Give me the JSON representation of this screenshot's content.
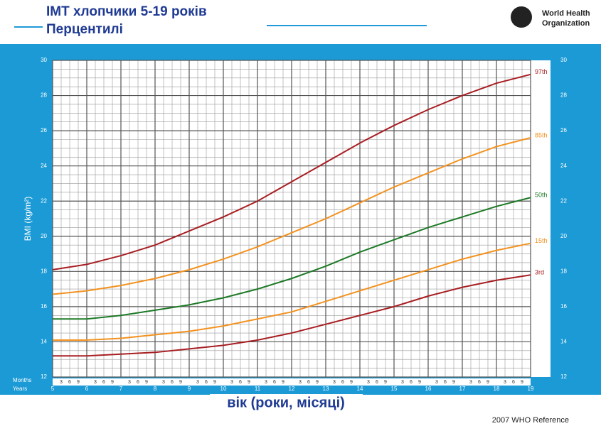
{
  "chart_data": {
    "type": "line",
    "title": "ІМТ хлопчики 5-19 років",
    "subtitle": "Перцентилі",
    "organization": [
      "World Health",
      "Organization"
    ],
    "ylabel": "BMI (kg/m²)",
    "xlabel": "вік (роки, місяці)",
    "months_label": "Months",
    "years_label": "Years",
    "month_ticks": [
      "3",
      "6",
      "9"
    ],
    "footer": "2007  WHO Reference",
    "x": [
      5,
      6,
      7,
      8,
      9,
      10,
      11,
      12,
      13,
      14,
      15,
      16,
      17,
      18,
      19
    ],
    "xlim": [
      5,
      19
    ],
    "xticks": [
      5,
      6,
      7,
      8,
      9,
      10,
      11,
      12,
      13,
      14,
      15,
      16,
      17,
      18,
      19
    ],
    "ylim": [
      12,
      30
    ],
    "yticks": [
      12,
      14,
      16,
      18,
      20,
      22,
      24,
      26,
      28,
      30
    ],
    "grid": true,
    "series": [
      {
        "name": "97th",
        "color": "#a81e22",
        "values": [
          18.1,
          18.4,
          18.9,
          19.5,
          20.3,
          21.1,
          22.0,
          23.1,
          24.2,
          25.3,
          26.3,
          27.2,
          28.0,
          28.7,
          29.2
        ]
      },
      {
        "name": "85th",
        "color": "#f39220",
        "values": [
          16.7,
          16.9,
          17.2,
          17.6,
          18.1,
          18.7,
          19.4,
          20.2,
          21.0,
          21.9,
          22.8,
          23.6,
          24.4,
          25.1,
          25.6
        ]
      },
      {
        "name": "50th",
        "color": "#1d7a26",
        "values": [
          15.3,
          15.3,
          15.5,
          15.8,
          16.1,
          16.5,
          17.0,
          17.6,
          18.3,
          19.1,
          19.8,
          20.5,
          21.1,
          21.7,
          22.2
        ]
      },
      {
        "name": "15th",
        "color": "#f39220",
        "values": [
          14.1,
          14.1,
          14.2,
          14.4,
          14.6,
          14.9,
          15.3,
          15.7,
          16.3,
          16.9,
          17.5,
          18.1,
          18.7,
          19.2,
          19.6
        ]
      },
      {
        "name": "3rd",
        "color": "#a81e22",
        "values": [
          13.2,
          13.2,
          13.3,
          13.4,
          13.6,
          13.8,
          14.1,
          14.5,
          15.0,
          15.5,
          16.0,
          16.6,
          17.1,
          17.5,
          17.8
        ]
      }
    ]
  }
}
